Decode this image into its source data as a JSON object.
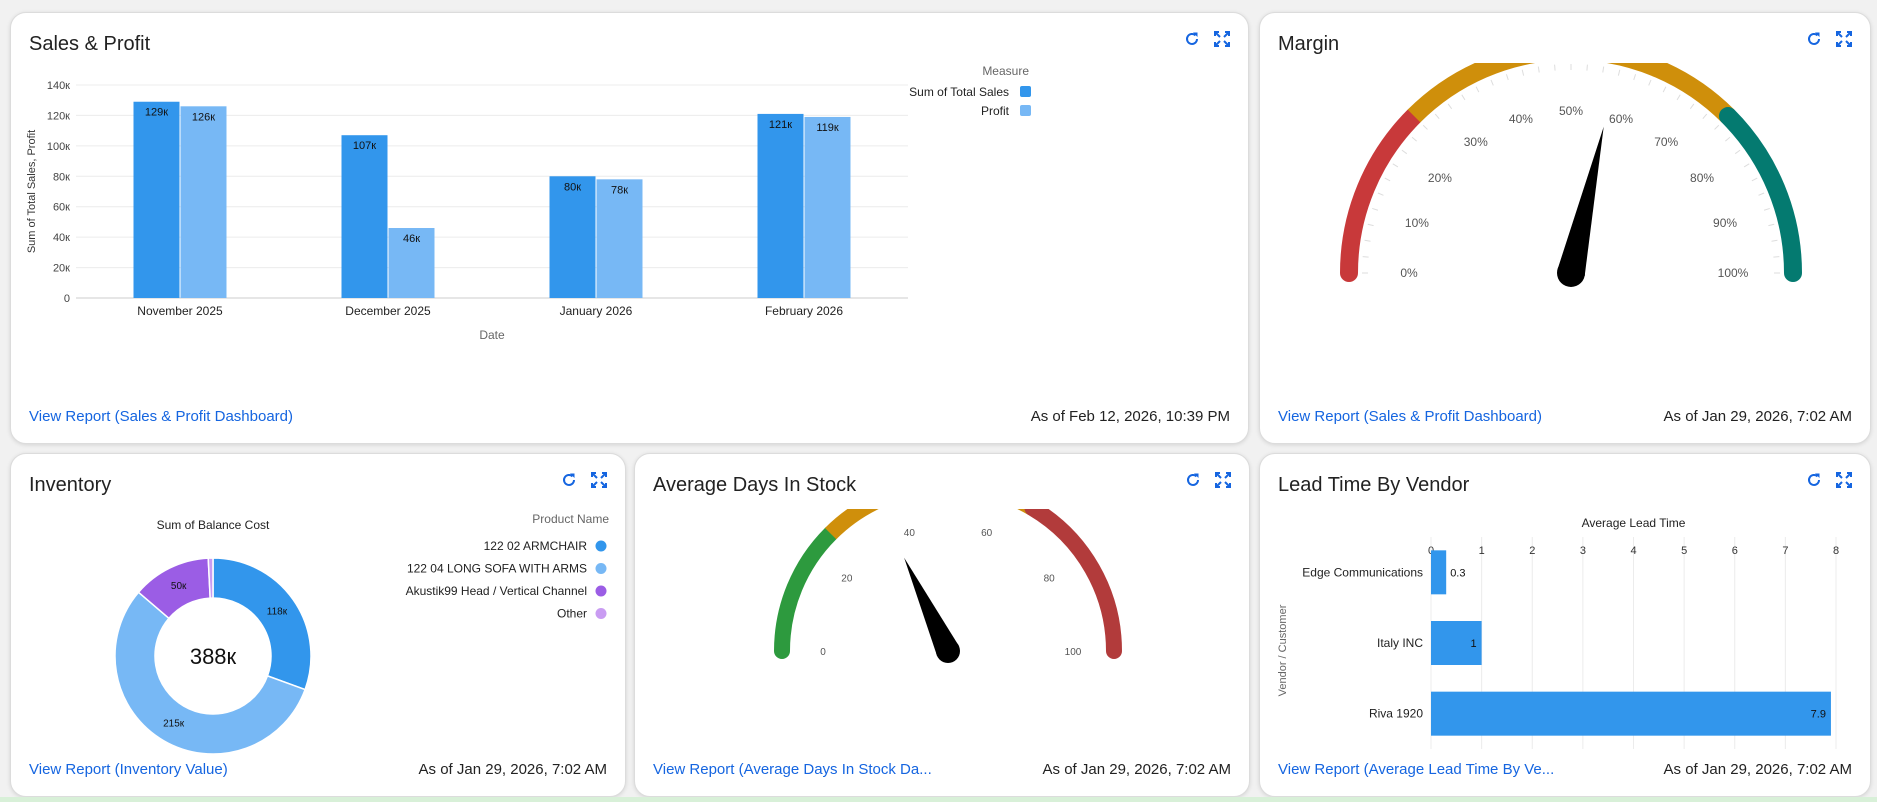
{
  "cards": {
    "sales_profit": {
      "title": "Sales & Profit",
      "link": "View Report (Sales & Profit Dashboard)",
      "timestamp": "As of Feb 12, 2026, 10:39 PM"
    },
    "margin": {
      "title": "Margin",
      "link": "View Report (Sales & Profit Dashboard)",
      "timestamp": "As of Jan 29, 2026, 7:02 AM"
    },
    "inventory": {
      "title": "Inventory",
      "link": "View Report (Inventory Value)",
      "timestamp": "As of Jan 29, 2026, 7:02 AM"
    },
    "avg_days": {
      "title": "Average Days In Stock",
      "link": "View Report (Average Days In Stock Da...",
      "timestamp": "As of Jan 29, 2026, 7:02 AM"
    },
    "lead_time": {
      "title": "Lead Time By Vendor",
      "link": "View Report (Average Lead Time By Ve...",
      "timestamp": "As of Jan 29, 2026, 7:02 AM"
    }
  },
  "icons": {
    "refresh": "refresh-icon",
    "expand": "expand-icon"
  },
  "colors": {
    "accent": "#1565e0",
    "bar_primary": "#3296ec",
    "bar_secondary": "#77b8f5",
    "purple": "#9b5de5",
    "light_purple": "#c99cf2",
    "red": "#c8393a",
    "orange": "#cf8f0b",
    "teal": "#047a70",
    "green": "#2d9a3e"
  },
  "chart_data": [
    {
      "id": "sales_profit",
      "type": "bar",
      "categories": [
        "November 2025",
        "December 2025",
        "January 2026",
        "February 2026"
      ],
      "series": [
        {
          "name": "Sum of Total Sales",
          "values": [
            129000,
            107000,
            80000,
            121000
          ],
          "labels": [
            "129к",
            "107к",
            "80к",
            "121к"
          ]
        },
        {
          "name": "Profit",
          "values": [
            126000,
            46000,
            78000,
            119000
          ],
          "labels": [
            "126к",
            "46к",
            "78к",
            "119к"
          ]
        }
      ],
      "xlabel": "Date",
      "ylabel": "Sum of Total Sales, Profit",
      "legend_title": "Measure",
      "legend_position": "top-right",
      "ylim": [
        0,
        140000
      ],
      "yticks": [
        0,
        20000,
        40000,
        60000,
        80000,
        100000,
        120000,
        140000
      ],
      "ytick_labels": [
        "0",
        "20к",
        "40к",
        "60к",
        "80к",
        "100к",
        "120к",
        "140к"
      ],
      "grid": true
    },
    {
      "id": "margin",
      "type": "gauge",
      "min": 0,
      "max": 100,
      "value": 57,
      "ticks": [
        0,
        10,
        20,
        30,
        40,
        50,
        60,
        70,
        80,
        90,
        100
      ],
      "tick_labels": [
        "0%",
        "10%",
        "20%",
        "30%",
        "40%",
        "50%",
        "60%",
        "70%",
        "80%",
        "90%",
        "100%"
      ],
      "bands": [
        {
          "from": 0,
          "to": 25,
          "color": "#c8393a"
        },
        {
          "from": 25,
          "to": 75,
          "color": "#cf8f0b"
        },
        {
          "from": 75,
          "to": 100,
          "color": "#047a70"
        }
      ]
    },
    {
      "id": "inventory",
      "type": "pie",
      "title": "Sum of Balance Cost",
      "legend_title": "Product Name",
      "center_label": "388к",
      "slices": [
        {
          "name": "122 02 ARMCHAIR",
          "value": 118,
          "label": "118к",
          "color": "#3296ec"
        },
        {
          "name": "122 04 LONG SOFA WITH ARMS",
          "value": 215,
          "label": "215к",
          "color": "#77b8f5"
        },
        {
          "name": "Akustik99 Head / Vertical Channel",
          "value": 50,
          "label": "50к",
          "color": "#9b5de5"
        },
        {
          "name": "Other",
          "value": 3,
          "label": "",
          "color": "#c99cf2"
        }
      ]
    },
    {
      "id": "avg_days",
      "type": "gauge",
      "min": 0,
      "max": 100,
      "value": 36,
      "ticks": [
        0,
        20,
        40,
        60,
        80,
        100
      ],
      "tick_labels": [
        "0",
        "20",
        "40",
        "60",
        "80",
        "100"
      ],
      "bands": [
        {
          "from": 0,
          "to": 25,
          "color": "#2d9a3e"
        },
        {
          "from": 25,
          "to": 67,
          "color": "#cf8f0b"
        },
        {
          "from": 67,
          "to": 100,
          "color": "#b23b3b"
        }
      ]
    },
    {
      "id": "lead_time",
      "type": "bar",
      "orientation": "horizontal",
      "categories": [
        "Edge Communications",
        "Italy INC",
        "Riva 1920"
      ],
      "values": [
        0.3,
        1,
        7.9
      ],
      "value_labels": [
        "0.3",
        "1",
        "7.9"
      ],
      "xlabel": "Average Lead Time",
      "ylabel": "Vendor / Customer",
      "xlim": [
        0,
        8
      ],
      "xticks": [
        0,
        1,
        2,
        3,
        4,
        5,
        6,
        7,
        8
      ],
      "grid": true
    }
  ]
}
